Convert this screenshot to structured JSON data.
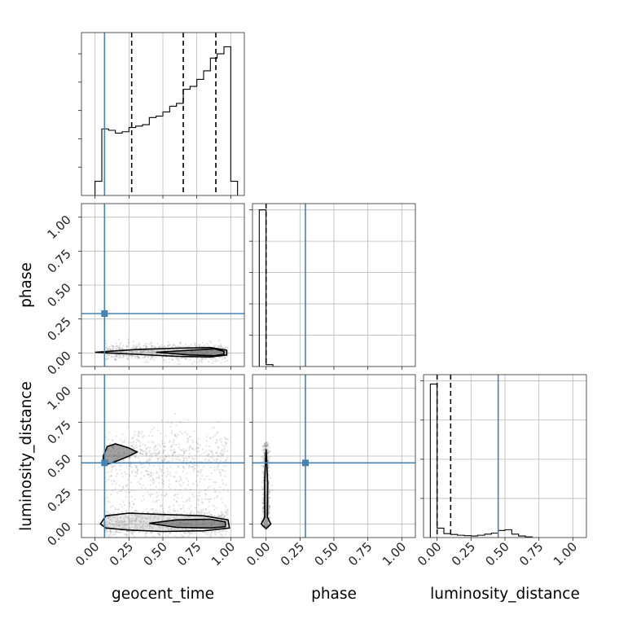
{
  "chart_data": {
    "type": "corner",
    "parameters": [
      "geocent_time",
      "phase",
      "luminosity_distance"
    ],
    "axis_range": [
      -0.1,
      1.1
    ],
    "tick_values": [
      0.0,
      0.25,
      0.5,
      0.75,
      1.0
    ],
    "tick_labels": [
      "0.00",
      "0.25",
      "0.50",
      "0.75",
      "1.00"
    ],
    "grid": true,
    "colors": {
      "truth": "#4682b4",
      "hist": "#000000",
      "quantile": "#000000",
      "scatter": "#808080",
      "contour": "#000000"
    },
    "truths": {
      "geocent_time": 0.07,
      "phase": 0.29,
      "luminosity_distance": 0.45
    },
    "diagonal": [
      {
        "parameter": "geocent_time",
        "bin_edges": [
          0.0,
          0.05,
          0.1,
          0.15,
          0.2,
          0.25,
          0.3,
          0.35,
          0.4,
          0.45,
          0.5,
          0.55,
          0.6,
          0.65,
          0.7,
          0.75,
          0.8,
          0.85,
          0.9,
          0.95,
          1.0,
          1.05
        ],
        "counts": [
          0.1,
          0.47,
          0.46,
          0.44,
          0.45,
          0.48,
          0.49,
          0.5,
          0.55,
          0.56,
          0.59,
          0.63,
          0.65,
          0.75,
          0.77,
          0.82,
          0.88,
          0.97,
          1.0,
          1.05,
          0.1
        ],
        "y_max": 1.15,
        "y_ticks": [
          0.2,
          0.4,
          0.6,
          0.8,
          1.0
        ],
        "quantiles": [
          0.27,
          0.65,
          0.89
        ]
      },
      {
        "parameter": "phase",
        "bin_edges": [
          -0.05,
          0.0,
          0.05,
          0.1
        ],
        "counts": [
          1.0,
          0.012,
          0.0
        ],
        "y_max": 1.04,
        "y_ticks": [
          0.2,
          0.4,
          0.6,
          0.8,
          1.0
        ],
        "quantiles": [
          0.0
        ]
      },
      {
        "parameter": "luminosity_distance",
        "bin_edges": [
          -0.05,
          0.0,
          0.05,
          0.1,
          0.15,
          0.2,
          0.25,
          0.3,
          0.35,
          0.4,
          0.45,
          0.5,
          0.55,
          0.6,
          0.65,
          0.7
        ],
        "counts": [
          0.98,
          0.06,
          0.025,
          0.02,
          0.015,
          0.012,
          0.01,
          0.015,
          0.022,
          0.028,
          0.045,
          0.05,
          0.022,
          0.01,
          0.004
        ],
        "y_max": 1.04,
        "y_ticks": [
          0.25,
          0.5,
          0.75,
          1.0
        ],
        "quantiles": [
          0.0,
          0.1
        ]
      }
    ],
    "off_diagonal": [
      {
        "x": "geocent_time",
        "y": "phase",
        "scatter": {
          "x_range": [
            0.08,
            0.98
          ],
          "y_center": 0.005,
          "y_spread": 0.03
        },
        "contours": [
          [
            [
              0.0,
              0.005
            ],
            [
              0.3,
              0.025
            ],
            [
              0.6,
              0.035
            ],
            [
              0.85,
              0.04
            ],
            [
              0.97,
              0.02
            ],
            [
              0.97,
              -0.015
            ],
            [
              0.85,
              -0.03
            ],
            [
              0.6,
              -0.025
            ],
            [
              0.3,
              -0.01
            ],
            [
              0.0,
              0.005
            ]
          ],
          [
            [
              0.45,
              0.005
            ],
            [
              0.7,
              0.02
            ],
            [
              0.88,
              0.03
            ],
            [
              0.95,
              0.012
            ],
            [
              0.95,
              -0.01
            ],
            [
              0.88,
              -0.02
            ],
            [
              0.7,
              -0.015
            ],
            [
              0.45,
              0.005
            ]
          ]
        ]
      },
      {
        "x": "geocent_time",
        "y": "luminosity_distance",
        "scatter": {
          "x_range": [
            0.07,
            0.98
          ],
          "clusters": [
            {
              "y_center": 0.0,
              "y_spread": 0.05,
              "weight": 0.5
            },
            {
              "y_center": 0.5,
              "y_spread": 0.1,
              "weight": 0.3
            },
            {
              "y_center": 0.2,
              "y_spread": 0.2,
              "weight": 0.2
            }
          ]
        },
        "contours": [
          [
            [
              0.04,
              0.0
            ],
            [
              0.08,
              0.06
            ],
            [
              0.25,
              0.08
            ],
            [
              0.5,
              0.07
            ],
            [
              0.8,
              0.06
            ],
            [
              0.98,
              0.03
            ],
            [
              0.99,
              -0.03
            ],
            [
              0.8,
              -0.05
            ],
            [
              0.5,
              -0.055
            ],
            [
              0.25,
              -0.045
            ],
            [
              0.08,
              -0.03
            ],
            [
              0.04,
              0.0
            ]
          ],
          [
            [
              0.4,
              0.005
            ],
            [
              0.6,
              0.03
            ],
            [
              0.85,
              0.035
            ],
            [
              0.96,
              0.015
            ],
            [
              0.96,
              -0.02
            ],
            [
              0.85,
              -0.03
            ],
            [
              0.6,
              -0.025
            ],
            [
              0.4,
              0.005
            ]
          ],
          [
            [
              0.06,
              0.5
            ],
            [
              0.09,
              0.57
            ],
            [
              0.15,
              0.59
            ],
            [
              0.25,
              0.56
            ],
            [
              0.31,
              0.53
            ],
            [
              0.25,
              0.5
            ],
            [
              0.15,
              0.46
            ],
            [
              0.09,
              0.44
            ],
            [
              0.06,
              0.47
            ],
            [
              0.06,
              0.5
            ]
          ]
        ]
      },
      {
        "x": "phase",
        "y": "luminosity_distance",
        "scatter": {
          "x_center": 0.0,
          "x_spread": 0.012,
          "y_range": [
            -0.02,
            0.6
          ]
        },
        "contours": [
          [
            [
              0.0,
              0.55
            ],
            [
              0.012,
              0.3
            ],
            [
              0.01,
              0.05
            ],
            [
              0.035,
              0.0
            ],
            [
              0.0,
              -0.035
            ],
            [
              -0.035,
              0.0
            ],
            [
              -0.01,
              0.05
            ],
            [
              -0.012,
              0.3
            ],
            [
              0.0,
              0.55
            ]
          ]
        ]
      }
    ]
  }
}
